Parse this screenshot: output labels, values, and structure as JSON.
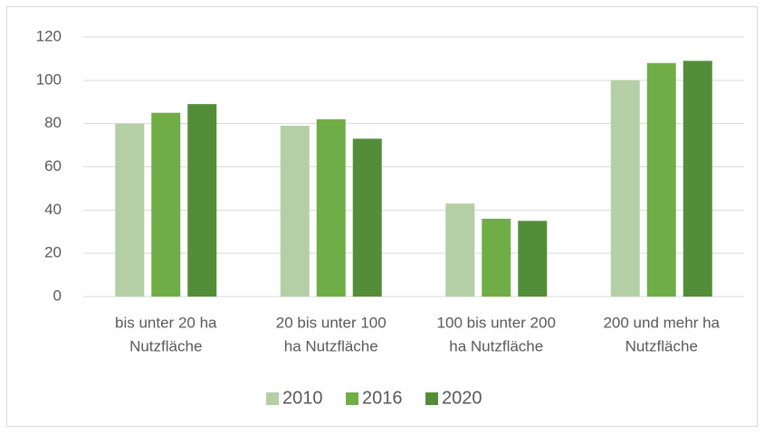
{
  "chart_data": {
    "type": "bar",
    "categories": [
      [
        "bis unter 20 ha",
        "Nutzfläche"
      ],
      [
        "20 bis unter 100",
        "ha Nutzfläche"
      ],
      [
        "100 bis unter 200",
        "ha Nutzfläche"
      ],
      [
        "200 und mehr ha",
        "Nutzfläche"
      ]
    ],
    "series": [
      {
        "name": "2010",
        "color": "#b4cfa5",
        "values": [
          80,
          79,
          43,
          100
        ]
      },
      {
        "name": "2016",
        "color": "#70ad47",
        "values": [
          85,
          82,
          36,
          108
        ]
      },
      {
        "name": "2020",
        "color": "#548d38",
        "values": [
          89,
          73,
          35,
          109
        ]
      }
    ],
    "ylim": [
      0,
      120
    ],
    "yticks": [
      0,
      20,
      40,
      60,
      80,
      100,
      120
    ],
    "grid": true,
    "legend": "bottom"
  }
}
